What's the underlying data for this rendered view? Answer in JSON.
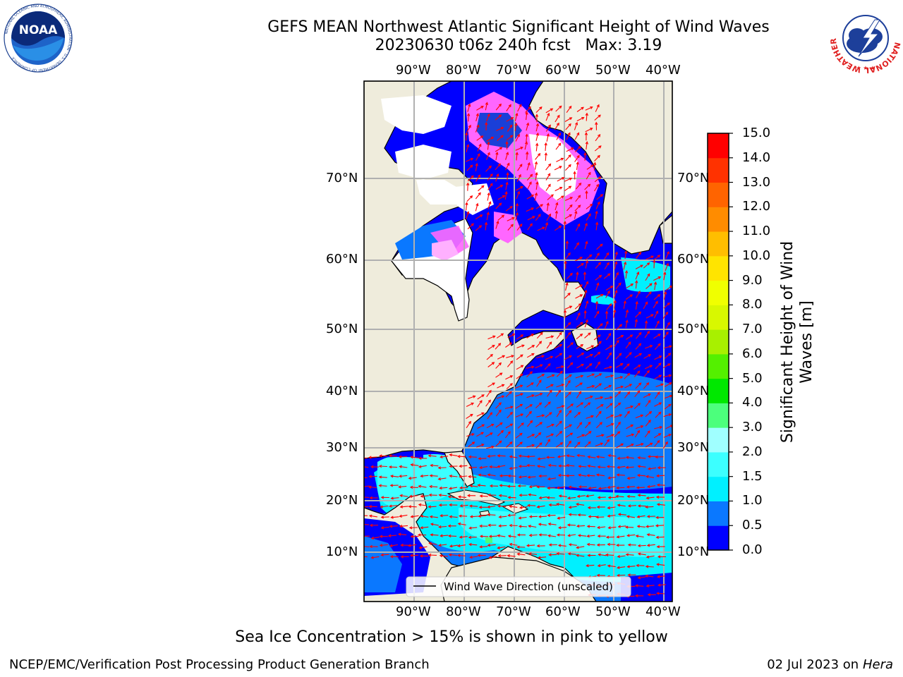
{
  "title": {
    "line1": "GEFS MEAN Northwest Atlantic Significant Height of Wind Waves",
    "line2": "20230630 t06z 240h fcst   Max: 3.19"
  },
  "logos": {
    "left": {
      "icon": "noaa-logo",
      "text": "NOAA",
      "ring_text": "NATIONAL OCEANIC AND ATMOSPHERIC ADMINISTRATION · U.S. DEPARTMENT OF COMMERCE"
    },
    "right": {
      "icon": "nws-logo",
      "ring_text": "NATIONAL WEATHER SERVICE"
    }
  },
  "map": {
    "lon_labels": [
      "90°W",
      "80°W",
      "70°W",
      "60°W",
      "50°W",
      "40°W"
    ],
    "lat_labels": [
      "70°N",
      "60°N",
      "50°N",
      "40°N",
      "30°N",
      "20°N",
      "10°N"
    ],
    "legend_text": "Wind Wave Direction (unscaled)",
    "colors": {
      "land": "#efecdc",
      "ice": "#ffffff",
      "arrow": "#ff0000",
      "grid": "#b0b0b0"
    }
  },
  "colorbar": {
    "label": "Significant Height of Wind Waves [m]",
    "ticks": [
      "0.0",
      "0.5",
      "1.0",
      "1.5",
      "2.0",
      "3.0",
      "4.0",
      "5.0",
      "6.0",
      "7.0",
      "8.0",
      "9.0",
      "10.0",
      "11.0",
      "12.0",
      "13.0",
      "14.0",
      "15.0"
    ],
    "colors": [
      "#0000ff",
      "#0a78ff",
      "#00f0ff",
      "#3cffff",
      "#a0ffff",
      "#4cff7c",
      "#00e800",
      "#54f000",
      "#a8f000",
      "#d8f800",
      "#f0ff00",
      "#ffe400",
      "#ffbe00",
      "#ff8c00",
      "#ff6400",
      "#ff3200",
      "#ff0000"
    ]
  },
  "caption": "Sea Ice Concentration > 15% is shown in pink to yellow",
  "footer": {
    "left": "NCEP/EMC/Verification Post Processing Product Generation Branch",
    "right_prefix": "02 Jul 2023 on ",
    "right_host": "Hera"
  }
}
